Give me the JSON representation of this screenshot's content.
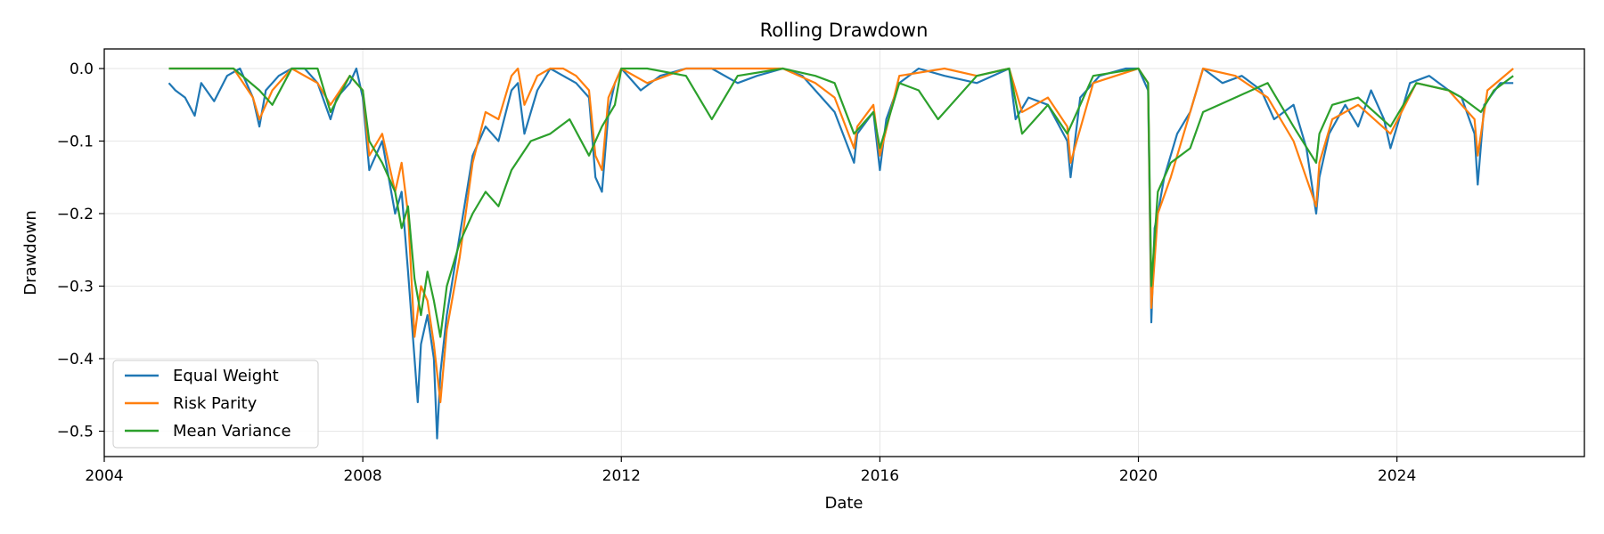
{
  "chart_data": {
    "type": "line",
    "title": "Rolling Drawdown",
    "xlabel": "Date",
    "ylabel": "Drawdown",
    "xlim": [
      2004.0,
      2026.9
    ],
    "ylim": [
      -0.535,
      0.027
    ],
    "xticks": [
      2004,
      2008,
      2012,
      2016,
      2020,
      2024
    ],
    "xtick_labels": [
      "2004",
      "2008",
      "2012",
      "2016",
      "2020",
      "2024"
    ],
    "yticks": [
      0.0,
      -0.1,
      -0.2,
      -0.3,
      -0.4,
      -0.5
    ],
    "ytick_labels": [
      "0.0",
      "−0.1",
      "−0.2",
      "−0.3",
      "−0.4",
      "−0.5"
    ],
    "grid": true,
    "legend_position": "lower-left",
    "series": [
      {
        "name": "Equal Weight",
        "color": "#1f77b4",
        "x": [
          2005.0,
          2005.1,
          2005.25,
          2005.4,
          2005.5,
          2005.7,
          2005.9,
          2006.1,
          2006.3,
          2006.4,
          2006.5,
          2006.7,
          2006.9,
          2007.1,
          2007.3,
          2007.5,
          2007.6,
          2007.8,
          2007.9,
          2008.0,
          2008.1,
          2008.3,
          2008.5,
          2008.6,
          2008.7,
          2008.8,
          2008.85,
          2008.9,
          2009.0,
          2009.1,
          2009.15,
          2009.2,
          2009.3,
          2009.5,
          2009.7,
          2009.9,
          2010.1,
          2010.3,
          2010.4,
          2010.5,
          2010.7,
          2010.9,
          2011.1,
          2011.3,
          2011.5,
          2011.6,
          2011.7,
          2011.8,
          2011.9,
          2012.0,
          2012.3,
          2012.6,
          2013.0,
          2013.4,
          2013.8,
          2014.1,
          2014.5,
          2014.8,
          2015.0,
          2015.3,
          2015.6,
          2015.65,
          2015.9,
          2016.0,
          2016.1,
          2016.3,
          2016.6,
          2017.0,
          2017.5,
          2018.0,
          2018.1,
          2018.3,
          2018.6,
          2018.9,
          2018.95,
          2019.1,
          2019.4,
          2019.8,
          2020.0,
          2020.15,
          2020.2,
          2020.25,
          2020.3,
          2020.4,
          2020.6,
          2020.8,
          2021.0,
          2021.3,
          2021.6,
          2021.9,
          2022.1,
          2022.4,
          2022.6,
          2022.75,
          2022.8,
          2022.95,
          2023.2,
          2023.4,
          2023.6,
          2023.8,
          2023.9,
          2024.2,
          2024.5,
          2024.8,
          2025.0,
          2025.2,
          2025.25,
          2025.35,
          2025.6,
          2025.8
        ],
        "y": [
          -0.02,
          -0.03,
          -0.04,
          -0.065,
          -0.02,
          -0.045,
          -0.01,
          0.0,
          -0.04,
          -0.08,
          -0.03,
          -0.01,
          0.0,
          0.0,
          -0.02,
          -0.07,
          -0.04,
          -0.02,
          0.0,
          -0.04,
          -0.14,
          -0.1,
          -0.2,
          -0.17,
          -0.28,
          -0.4,
          -0.46,
          -0.38,
          -0.34,
          -0.4,
          -0.51,
          -0.42,
          -0.34,
          -0.23,
          -0.12,
          -0.08,
          -0.1,
          -0.03,
          -0.02,
          -0.09,
          -0.03,
          0.0,
          -0.01,
          -0.02,
          -0.04,
          -0.15,
          -0.17,
          -0.06,
          -0.02,
          0.0,
          -0.03,
          -0.01,
          0.0,
          0.0,
          -0.02,
          -0.01,
          0.0,
          -0.01,
          -0.03,
          -0.06,
          -0.13,
          -0.09,
          -0.06,
          -0.14,
          -0.07,
          -0.02,
          0.0,
          -0.01,
          -0.02,
          0.0,
          -0.07,
          -0.04,
          -0.05,
          -0.1,
          -0.15,
          -0.04,
          -0.01,
          0.0,
          0.0,
          -0.03,
          -0.35,
          -0.22,
          -0.2,
          -0.15,
          -0.09,
          -0.06,
          0.0,
          -0.02,
          -0.01,
          -0.03,
          -0.07,
          -0.05,
          -0.11,
          -0.2,
          -0.15,
          -0.09,
          -0.05,
          -0.08,
          -0.03,
          -0.07,
          -0.11,
          -0.02,
          -0.01,
          -0.03,
          -0.04,
          -0.09,
          -0.16,
          -0.05,
          -0.02,
          -0.02
        ]
      },
      {
        "name": "Risk Parity",
        "color": "#ff7f0e",
        "x": [
          2005.0,
          2005.5,
          2006.0,
          2006.3,
          2006.4,
          2006.6,
          2006.9,
          2007.3,
          2007.5,
          2007.8,
          2008.0,
          2008.1,
          2008.3,
          2008.5,
          2008.6,
          2008.7,
          2008.8,
          2008.9,
          2009.0,
          2009.1,
          2009.2,
          2009.3,
          2009.5,
          2009.7,
          2009.9,
          2010.1,
          2010.3,
          2010.4,
          2010.5,
          2010.7,
          2010.9,
          2011.1,
          2011.3,
          2011.5,
          2011.6,
          2011.7,
          2011.8,
          2012.0,
          2012.4,
          2013.0,
          2013.8,
          2014.5,
          2015.0,
          2015.3,
          2015.6,
          2015.65,
          2015.9,
          2016.0,
          2016.3,
          2017.0,
          2017.5,
          2018.0,
          2018.2,
          2018.6,
          2018.9,
          2018.95,
          2019.3,
          2020.0,
          2020.15,
          2020.2,
          2020.3,
          2020.5,
          2020.8,
          2021.0,
          2021.5,
          2022.0,
          2022.4,
          2022.75,
          2022.8,
          2023.0,
          2023.4,
          2023.9,
          2024.3,
          2024.8,
          2025.0,
          2025.2,
          2025.25,
          2025.4,
          2025.8
        ],
        "y": [
          0.0,
          0.0,
          0.0,
          -0.04,
          -0.07,
          -0.03,
          0.0,
          -0.02,
          -0.05,
          -0.01,
          -0.03,
          -0.12,
          -0.09,
          -0.17,
          -0.13,
          -0.2,
          -0.37,
          -0.3,
          -0.32,
          -0.38,
          -0.46,
          -0.36,
          -0.26,
          -0.13,
          -0.06,
          -0.07,
          -0.01,
          0.0,
          -0.05,
          -0.01,
          0.0,
          0.0,
          -0.01,
          -0.03,
          -0.12,
          -0.14,
          -0.04,
          0.0,
          -0.02,
          0.0,
          0.0,
          0.0,
          -0.02,
          -0.04,
          -0.11,
          -0.08,
          -0.05,
          -0.12,
          -0.01,
          0.0,
          -0.01,
          0.0,
          -0.06,
          -0.04,
          -0.08,
          -0.13,
          -0.02,
          0.0,
          -0.02,
          -0.33,
          -0.2,
          -0.15,
          -0.06,
          0.0,
          -0.01,
          -0.04,
          -0.1,
          -0.19,
          -0.13,
          -0.07,
          -0.05,
          -0.09,
          -0.02,
          -0.03,
          -0.05,
          -0.07,
          -0.12,
          -0.03,
          0.0
        ]
      },
      {
        "name": "Mean Variance",
        "color": "#2ca02c",
        "x": [
          2005.0,
          2005.5,
          2006.0,
          2006.4,
          2006.6,
          2006.9,
          2007.3,
          2007.5,
          2007.8,
          2008.0,
          2008.1,
          2008.3,
          2008.5,
          2008.6,
          2008.7,
          2008.8,
          2008.9,
          2009.0,
          2009.1,
          2009.2,
          2009.3,
          2009.5,
          2009.7,
          2009.9,
          2010.1,
          2010.3,
          2010.6,
          2010.9,
          2011.2,
          2011.5,
          2011.7,
          2011.9,
          2012.0,
          2012.4,
          2013.0,
          2013.4,
          2013.8,
          2014.5,
          2015.0,
          2015.3,
          2015.6,
          2015.9,
          2016.0,
          2016.3,
          2016.6,
          2016.9,
          2017.5,
          2018.0,
          2018.2,
          2018.6,
          2018.9,
          2019.3,
          2020.0,
          2020.15,
          2020.2,
          2020.3,
          2020.5,
          2020.8,
          2021.0,
          2021.5,
          2022.0,
          2022.4,
          2022.75,
          2022.8,
          2023.0,
          2023.4,
          2023.9,
          2024.3,
          2024.8,
          2025.0,
          2025.3,
          2025.5,
          2025.8
        ],
        "y": [
          0.0,
          0.0,
          0.0,
          -0.03,
          -0.05,
          0.0,
          0.0,
          -0.06,
          -0.01,
          -0.03,
          -0.1,
          -0.13,
          -0.17,
          -0.22,
          -0.19,
          -0.29,
          -0.34,
          -0.28,
          -0.32,
          -0.37,
          -0.3,
          -0.24,
          -0.2,
          -0.17,
          -0.19,
          -0.14,
          -0.1,
          -0.09,
          -0.07,
          -0.12,
          -0.08,
          -0.05,
          0.0,
          0.0,
          -0.01,
          -0.07,
          -0.01,
          0.0,
          -0.01,
          -0.02,
          -0.09,
          -0.06,
          -0.11,
          -0.02,
          -0.03,
          -0.07,
          -0.01,
          0.0,
          -0.09,
          -0.05,
          -0.09,
          -0.01,
          0.0,
          -0.02,
          -0.3,
          -0.17,
          -0.13,
          -0.11,
          -0.06,
          -0.04,
          -0.02,
          -0.08,
          -0.13,
          -0.09,
          -0.05,
          -0.04,
          -0.08,
          -0.02,
          -0.03,
          -0.04,
          -0.06,
          -0.03,
          -0.01
        ]
      }
    ]
  }
}
